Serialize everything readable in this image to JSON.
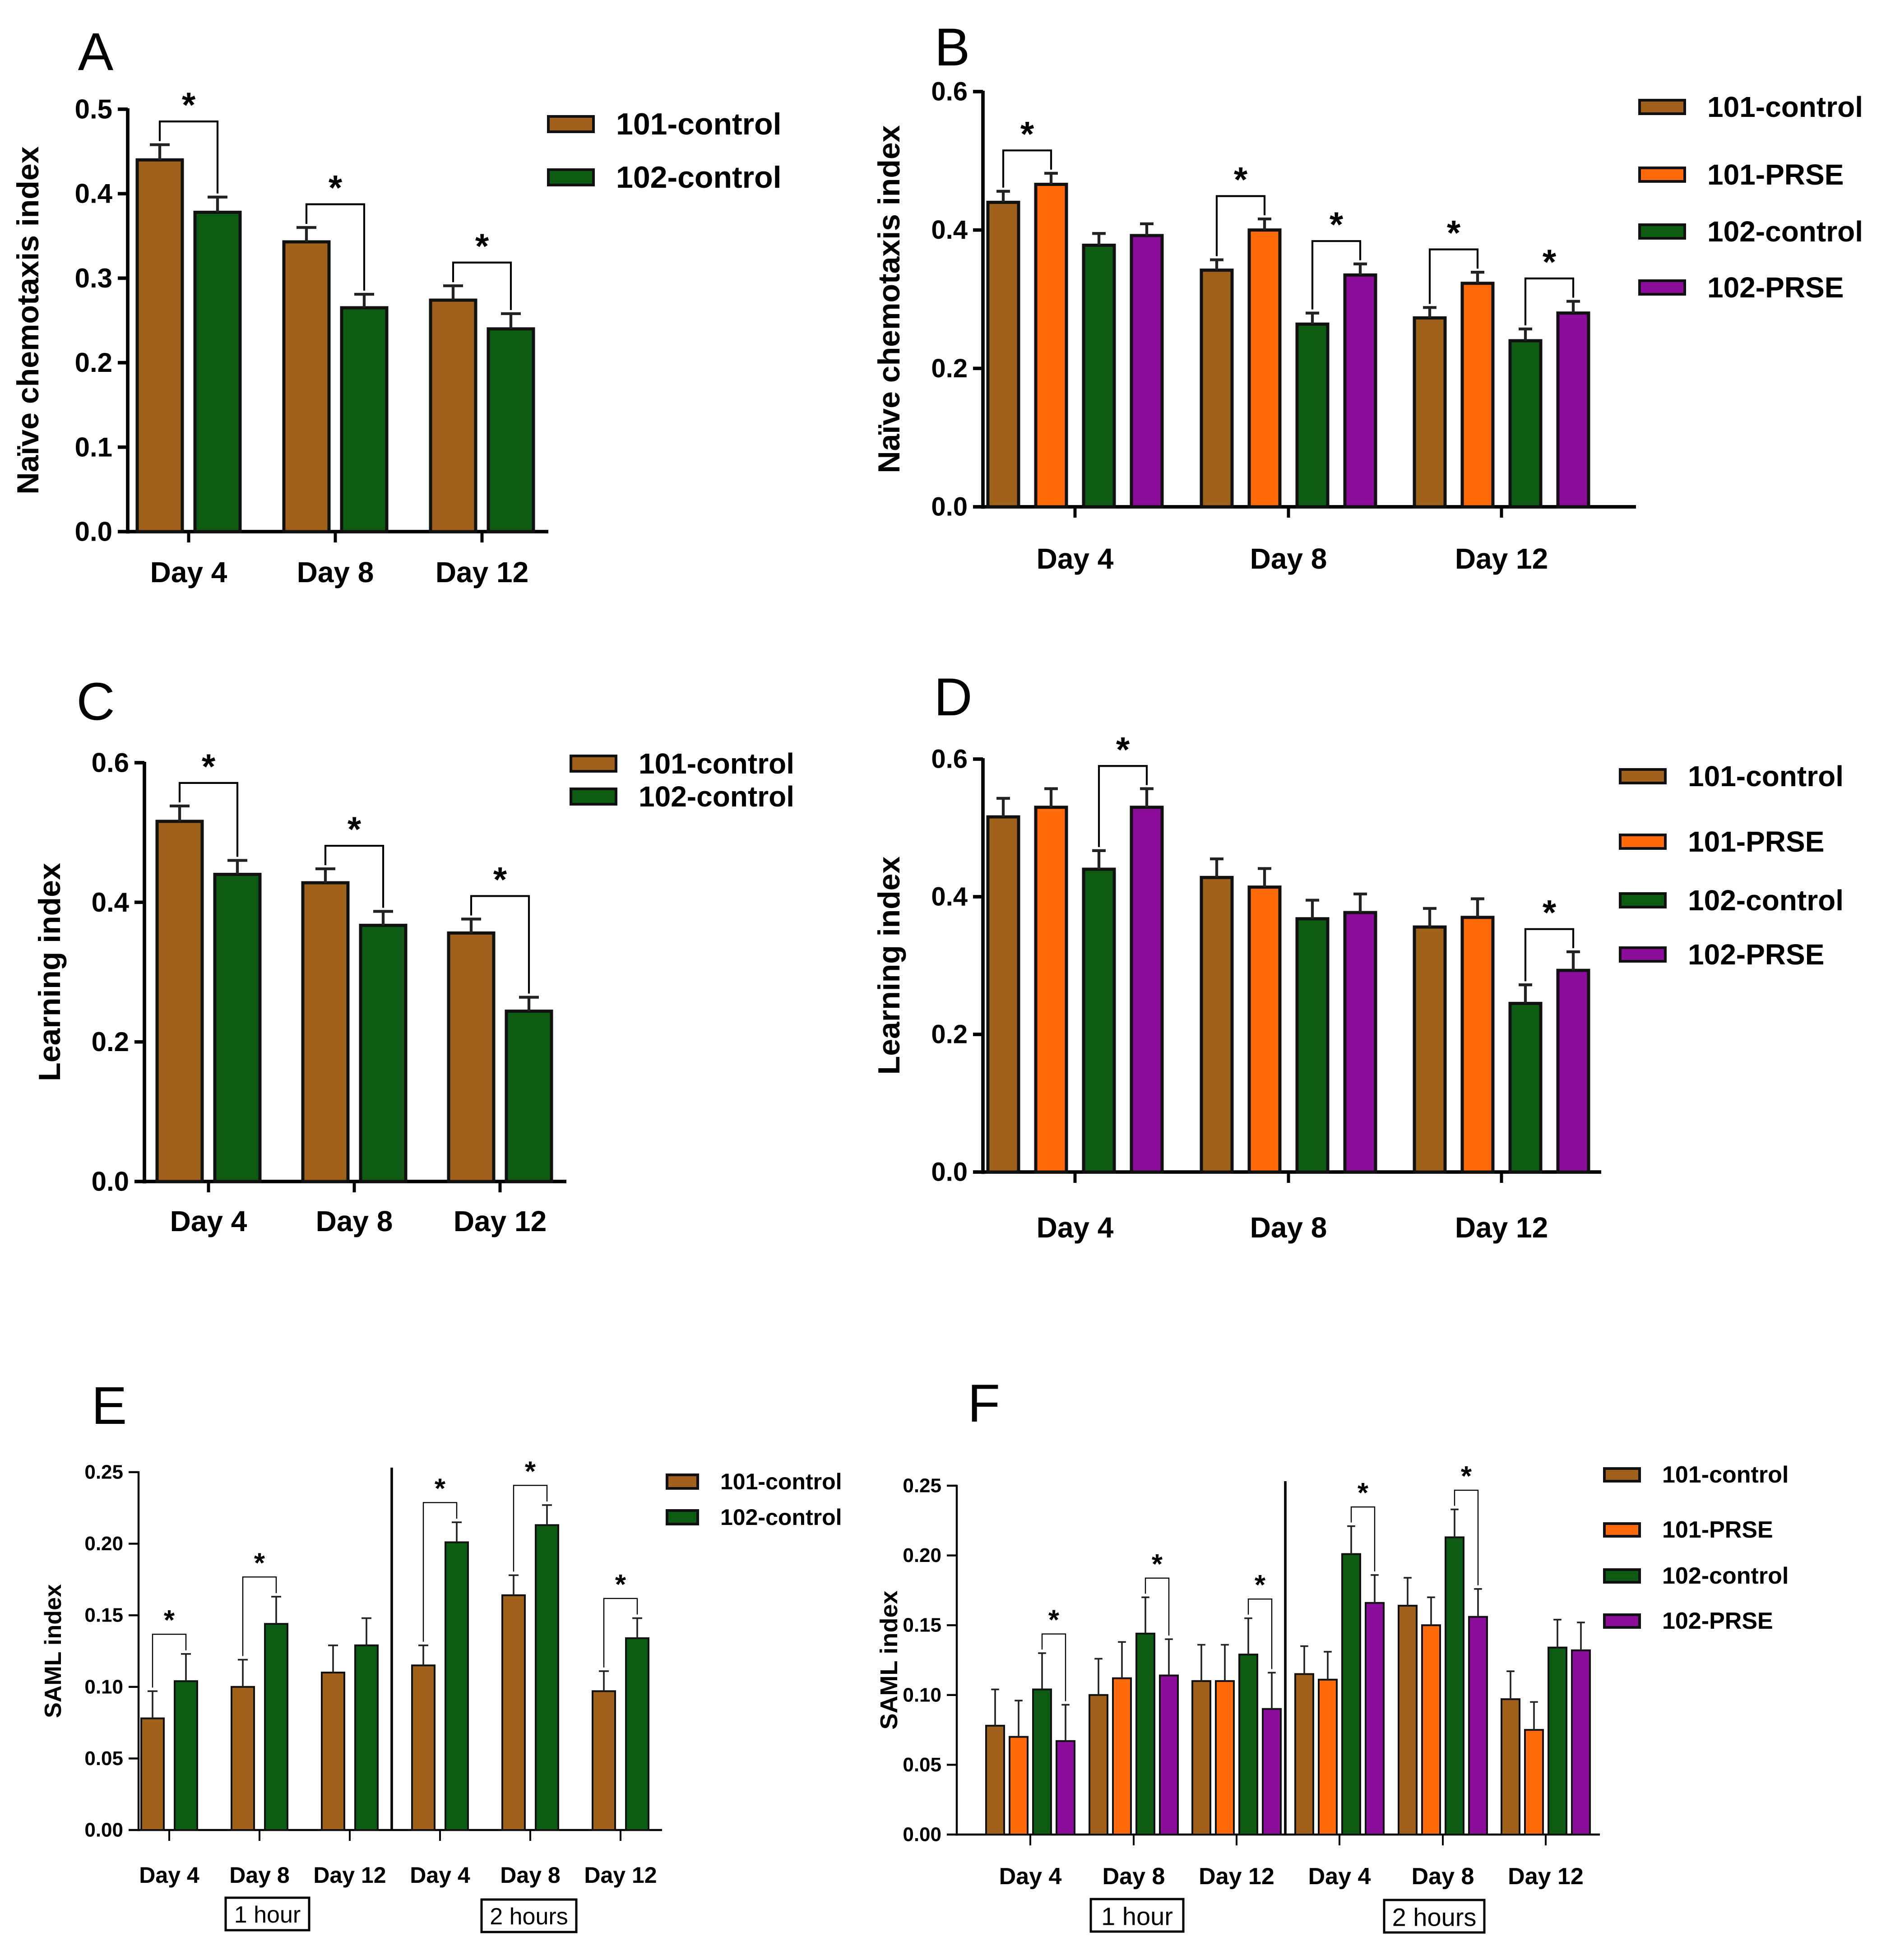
{
  "colors": {
    "101-control": "#a0611a",
    "101-PRSE": "#ff6a0a",
    "102-control": "#0e5c14",
    "102-PRSE": "#8c0c9c"
  },
  "chart_data": [
    {
      "panel": "A",
      "type": "bar",
      "ylabel": "Naïve chemotaxis index",
      "ylim": [
        0,
        0.5
      ],
      "yticks": [
        "0.0",
        "0.1",
        "0.2",
        "0.3",
        "0.4",
        "0.5"
      ],
      "categories": [
        "Day 4",
        "Day 8",
        "Day 12"
      ],
      "legend_labels": [
        "101-control",
        "102-control"
      ],
      "series": [
        {
          "name": "101-control",
          "values": [
            0.44,
            0.343,
            0.274
          ],
          "errors": [
            0.018,
            0.017,
            0.017
          ]
        },
        {
          "name": "102-control",
          "values": [
            0.378,
            0.265,
            0.24
          ],
          "errors": [
            0.018,
            0.016,
            0.018
          ]
        }
      ],
      "significance": [
        {
          "group": 0,
          "from": 0,
          "to": 1,
          "label": "*"
        },
        {
          "group": 1,
          "from": 0,
          "to": 1,
          "label": "*"
        },
        {
          "group": 2,
          "from": 0,
          "to": 1,
          "label": "*"
        }
      ]
    },
    {
      "panel": "B",
      "type": "bar",
      "ylabel": "Naïve chemotaxis index",
      "ylim": [
        0,
        0.6
      ],
      "yticks": [
        "0.0",
        "0.2",
        "0.4",
        "0.6"
      ],
      "categories": [
        "Day 4",
        "Day 8",
        "Day 12"
      ],
      "legend_labels": [
        "101-control",
        "101-PRSE",
        "102-control",
        "102-PRSE"
      ],
      "series": [
        {
          "name": "101-control",
          "values": [
            0.44,
            0.342,
            0.273
          ],
          "errors": [
            0.016,
            0.015,
            0.015
          ]
        },
        {
          "name": "101-PRSE",
          "values": [
            0.466,
            0.4,
            0.323
          ],
          "errors": [
            0.016,
            0.016,
            0.016
          ]
        },
        {
          "name": "102-control",
          "values": [
            0.378,
            0.264,
            0.24
          ],
          "errors": [
            0.017,
            0.016,
            0.017
          ]
        },
        {
          "name": "102-PRSE",
          "values": [
            0.392,
            0.335,
            0.28
          ],
          "errors": [
            0.017,
            0.016,
            0.017
          ]
        }
      ],
      "significance": [
        {
          "group": 0,
          "from": 0,
          "to": 1,
          "label": "*"
        },
        {
          "group": 1,
          "from": 0,
          "to": 1,
          "label": "*"
        },
        {
          "group": 1,
          "from": 2,
          "to": 3,
          "label": "*"
        },
        {
          "group": 2,
          "from": 0,
          "to": 1,
          "label": "*"
        },
        {
          "group": 2,
          "from": 2,
          "to": 3,
          "label": "*"
        }
      ]
    },
    {
      "panel": "C",
      "type": "bar",
      "ylabel": "Learning index",
      "ylim": [
        0,
        0.6
      ],
      "yticks": [
        "0.0",
        "0.2",
        "0.4",
        "0.6"
      ],
      "categories": [
        "Day 4",
        "Day 8",
        "Day 12"
      ],
      "legend_labels": [
        "101-control",
        "102-control"
      ],
      "series": [
        {
          "name": "101-control",
          "values": [
            0.516,
            0.428,
            0.356
          ],
          "errors": [
            0.022,
            0.02,
            0.02
          ]
        },
        {
          "name": "102-control",
          "values": [
            0.44,
            0.367,
            0.244
          ],
          "errors": [
            0.02,
            0.02,
            0.02
          ]
        }
      ],
      "significance": [
        {
          "group": 0,
          "from": 0,
          "to": 1,
          "label": "*"
        },
        {
          "group": 1,
          "from": 0,
          "to": 1,
          "label": "*"
        },
        {
          "group": 2,
          "from": 0,
          "to": 1,
          "label": "*"
        }
      ]
    },
    {
      "panel": "D",
      "type": "bar",
      "ylabel": "Learning index",
      "ylim": [
        0,
        0.6
      ],
      "yticks": [
        "0.0",
        "0.2",
        "0.4",
        "0.6"
      ],
      "categories": [
        "Day 4",
        "Day 8",
        "Day 12"
      ],
      "legend_labels": [
        "101-control",
        "101-PRSE",
        "102-control",
        "102-PRSE"
      ],
      "series": [
        {
          "name": "101-control",
          "values": [
            0.516,
            0.428,
            0.356
          ],
          "errors": [
            0.027,
            0.027,
            0.027
          ]
        },
        {
          "name": "101-PRSE",
          "values": [
            0.53,
            0.414,
            0.37
          ],
          "errors": [
            0.027,
            0.027,
            0.027
          ]
        },
        {
          "name": "102-control",
          "values": [
            0.44,
            0.368,
            0.245
          ],
          "errors": [
            0.027,
            0.027,
            0.027
          ]
        },
        {
          "name": "102-PRSE",
          "values": [
            0.53,
            0.377,
            0.293
          ],
          "errors": [
            0.027,
            0.027,
            0.027
          ]
        }
      ],
      "significance": [
        {
          "group": 0,
          "from": 2,
          "to": 3,
          "label": "*"
        },
        {
          "group": 2,
          "from": 2,
          "to": 3,
          "label": "*"
        }
      ]
    },
    {
      "panel": "E",
      "type": "bar",
      "ylabel": "SAML index",
      "ylim": [
        0,
        0.25
      ],
      "yticks": [
        "0.00",
        "0.05",
        "0.10",
        "0.15",
        "0.20",
        "0.25"
      ],
      "categories": [
        "Day 4",
        "Day 8",
        "Day 12",
        "Day 4",
        "Day 8",
        "Day 12"
      ],
      "period_labels": [
        "1 hour",
        "2 hours"
      ],
      "legend_labels": [
        "101-control",
        "102-control"
      ],
      "series": [
        {
          "name": "101-control",
          "values": [
            0.078,
            0.1,
            0.11,
            0.115,
            0.164,
            0.097
          ],
          "errors": [
            0.019,
            0.019,
            0.019,
            0.014,
            0.014,
            0.014
          ]
        },
        {
          "name": "102-control",
          "values": [
            0.104,
            0.144,
            0.129,
            0.201,
            0.213,
            0.134
          ],
          "errors": [
            0.019,
            0.019,
            0.019,
            0.014,
            0.014,
            0.014
          ]
        }
      ],
      "significance": [
        {
          "group": 0,
          "from": 0,
          "to": 1,
          "label": "*"
        },
        {
          "group": 1,
          "from": 0,
          "to": 1,
          "label": "*"
        },
        {
          "group": 3,
          "from": 0,
          "to": 1,
          "label": "*"
        },
        {
          "group": 4,
          "from": 0,
          "to": 1,
          "label": "*"
        },
        {
          "group": 5,
          "from": 0,
          "to": 1,
          "label": "*"
        }
      ]
    },
    {
      "panel": "F",
      "type": "bar",
      "ylabel": "SAML index",
      "ylim": [
        0,
        0.25
      ],
      "yticks": [
        "0.00",
        "0.05",
        "0.10",
        "0.15",
        "0.20",
        "0.25"
      ],
      "categories": [
        "Day 4",
        "Day 8",
        "Day 12",
        "Day 4",
        "Day 8",
        "Day 12"
      ],
      "period_labels": [
        "1 hour",
        "2 hours"
      ],
      "legend_labels": [
        "101-control",
        "101-PRSE",
        "102-control",
        "102-PRSE"
      ],
      "series": [
        {
          "name": "101-control",
          "values": [
            0.078,
            0.1,
            0.11,
            0.115,
            0.164,
            0.097
          ],
          "errors": [
            0.026,
            0.026,
            0.026,
            0.02,
            0.02,
            0.02
          ]
        },
        {
          "name": "101-PRSE",
          "values": [
            0.07,
            0.112,
            0.11,
            0.111,
            0.15,
            0.075
          ],
          "errors": [
            0.026,
            0.026,
            0.026,
            0.02,
            0.02,
            0.02
          ]
        },
        {
          "name": "102-control",
          "values": [
            0.104,
            0.144,
            0.129,
            0.201,
            0.213,
            0.134
          ],
          "errors": [
            0.026,
            0.026,
            0.026,
            0.02,
            0.02,
            0.02
          ]
        },
        {
          "name": "102-PRSE",
          "values": [
            0.067,
            0.114,
            0.09,
            0.166,
            0.156,
            0.132
          ],
          "errors": [
            0.026,
            0.026,
            0.026,
            0.02,
            0.02,
            0.02
          ]
        }
      ],
      "significance": [
        {
          "group": 0,
          "from": 2,
          "to": 3,
          "label": "*"
        },
        {
          "group": 1,
          "from": 2,
          "to": 3,
          "label": "*"
        },
        {
          "group": 2,
          "from": 2,
          "to": 3,
          "label": "*"
        },
        {
          "group": 3,
          "from": 2,
          "to": 3,
          "label": "*"
        },
        {
          "group": 4,
          "from": 2,
          "to": 3,
          "label": "*"
        }
      ]
    }
  ]
}
